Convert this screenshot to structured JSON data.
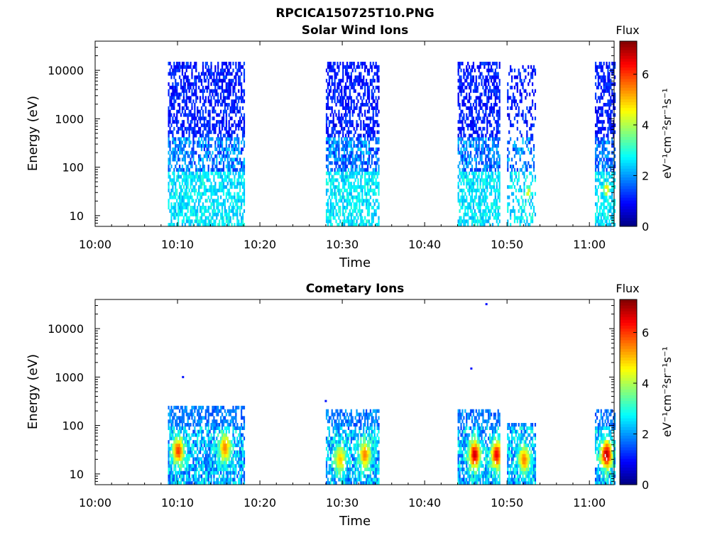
{
  "figure": {
    "title": "RPCICA150725T10.PNG"
  },
  "chart_data": [
    {
      "type": "heatmap",
      "title": "Solar Wind Ions",
      "xlabel": "Time",
      "ylabel": "Energy (eV)",
      "yscale": "log",
      "xlim": [
        "10:00",
        "11:03"
      ],
      "ylim": [
        6,
        40000
      ],
      "x_ticks": [
        "10:00",
        "10:10",
        "10:20",
        "10:30",
        "10:40",
        "10:50",
        "11:00"
      ],
      "y_ticks": [
        10,
        100,
        1000,
        10000
      ],
      "y_tick_labels": [
        "10",
        "100",
        "1000",
        "10000"
      ],
      "colorbar": {
        "title": "Flux",
        "label": "eV⁻¹cm⁻²sr⁻¹s⁻¹",
        "range": [
          0,
          7.3
        ],
        "ticks": [
          "0",
          "2",
          "4",
          "6"
        ],
        "colormap": "jet"
      },
      "data_blocks": [
        {
          "start": "10:08:50",
          "end": "10:18:00",
          "emax": 16000,
          "profile": "solarwind"
        },
        {
          "start": "10:28:00",
          "end": "10:34:20",
          "emax": 16000,
          "profile": "solarwind"
        },
        {
          "start": "10:44:00",
          "end": "10:49:00",
          "emax": 16000,
          "profile": "solarwind"
        },
        {
          "start": "10:50:00",
          "end": "10:53:20",
          "emax": 12000,
          "profile": "solarwind_sparse"
        },
        {
          "start": "11:00:40",
          "end": "11:03:00",
          "emax": 16000,
          "profile": "solarwind"
        }
      ],
      "description_peaks": [
        {
          "time": "10:52:30",
          "energy": 30,
          "flux": 4.5
        },
        {
          "time": "11:02:00",
          "energy": 35,
          "flux": 5.0
        }
      ],
      "grid": false
    },
    {
      "type": "heatmap",
      "title": "Cometary Ions",
      "xlabel": "Time",
      "ylabel": "Energy (eV)",
      "yscale": "log",
      "xlim": [
        "10:00",
        "11:03"
      ],
      "ylim": [
        6,
        40000
      ],
      "x_ticks": [
        "10:00",
        "10:10",
        "10:20",
        "10:30",
        "10:40",
        "10:50",
        "11:00"
      ],
      "y_ticks": [
        10,
        100,
        1000,
        10000
      ],
      "y_tick_labels": [
        "10",
        "100",
        "1000",
        "10000"
      ],
      "colorbar": {
        "title": "Flux",
        "label": "eV⁻¹cm⁻²sr⁻¹s⁻¹",
        "range": [
          0,
          7.3
        ],
        "ticks": [
          "0",
          "2",
          "4",
          "6"
        ],
        "colormap": "jet"
      },
      "data_blocks": [
        {
          "start": "10:08:50",
          "end": "10:18:00",
          "emax": 250,
          "profile": "cometary"
        },
        {
          "start": "10:28:00",
          "end": "10:34:20",
          "emax": 200,
          "profile": "cometary"
        },
        {
          "start": "10:44:00",
          "end": "10:49:00",
          "emax": 200,
          "profile": "cometary"
        },
        {
          "start": "10:50:00",
          "end": "10:53:20",
          "emax": 120,
          "profile": "cometary"
        },
        {
          "start": "11:00:40",
          "end": "11:03:00",
          "emax": 200,
          "profile": "cometary"
        }
      ],
      "isolated_points": [
        {
          "time": "10:10:40",
          "energy": 1000
        },
        {
          "time": "10:28:00",
          "energy": 320
        },
        {
          "time": "10:45:40",
          "energy": 1500
        },
        {
          "time": "10:47:30",
          "energy": 32000
        }
      ],
      "peaks": [
        {
          "time": "10:10:00",
          "energy": 30,
          "flux": 6.0
        },
        {
          "time": "10:15:40",
          "energy": 35,
          "flux": 5.5
        },
        {
          "time": "10:29:40",
          "energy": 20,
          "flux": 5.0
        },
        {
          "time": "10:32:40",
          "energy": 25,
          "flux": 5.5
        },
        {
          "time": "10:46:00",
          "energy": 25,
          "flux": 6.8
        },
        {
          "time": "10:48:40",
          "energy": 25,
          "flux": 6.5
        },
        {
          "time": "10:52:00",
          "energy": 20,
          "flux": 5.5
        },
        {
          "time": "11:02:00",
          "energy": 25,
          "flux": 7.0
        }
      ],
      "grid": false
    }
  ]
}
